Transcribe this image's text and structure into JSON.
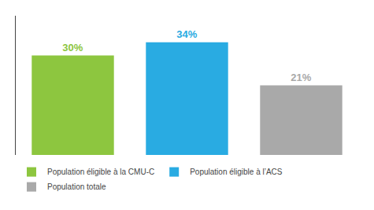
{
  "chart_data": {
    "type": "bar",
    "categories": [
      "Population éligible à la CMU-C",
      "Population éligible à l’ACS",
      "Population totale"
    ],
    "values": [
      30,
      34,
      21
    ],
    "value_labels": [
      "30%",
      "34%",
      "21%"
    ],
    "colors": [
      "#8dc63f",
      "#29abe2",
      "#a9a9a9"
    ],
    "data_labels": true,
    "ylim": [
      0,
      42
    ],
    "tick_labels": false,
    "grid": false,
    "legend": "bottom"
  }
}
